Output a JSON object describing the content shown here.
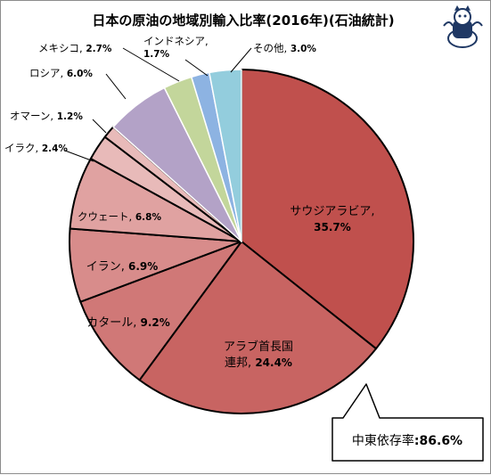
{
  "title": "日本の原油の地域別輸入比率(2016年)(石油統計)",
  "callout": {
    "label": "中東依存率",
    "value": "86.6%"
  },
  "colors": {
    "middle_east_1": "#c0504d",
    "middle_east_2": "#c86462",
    "middle_east_3": "#d07877",
    "middle_east_4": "#d88c8b",
    "middle_east_5": "#e0a2a1",
    "middle_east_6": "#e8bab9",
    "russia": "#b3a2c7",
    "mexico": "#c3d69b",
    "indonesia": "#8db3e2",
    "other": "#93cddd"
  },
  "chart_data": {
    "type": "pie",
    "title": "日本の原油の地域別輸入比率(2016年)(石油統計)",
    "start": "12 o'clock",
    "direction": "clockwise",
    "slices": [
      {
        "label": "サウジアラビア",
        "value": 35.7,
        "pct_text": "35.7%",
        "color": "#c0504d"
      },
      {
        "label": "アラブ首長国連邦",
        "value": 24.4,
        "pct_text": "24.4%",
        "color": "#c86462"
      },
      {
        "label": "カタール",
        "value": 9.2,
        "pct_text": "9.2%",
        "color": "#d07877"
      },
      {
        "label": "イラン",
        "value": 6.9,
        "pct_text": "6.9%",
        "color": "#d88c8b"
      },
      {
        "label": "クウェート",
        "value": 6.8,
        "pct_text": "6.8%",
        "color": "#e0a2a1"
      },
      {
        "label": "イラク",
        "value": 2.4,
        "pct_text": "2.4%",
        "color": "#e8bab9"
      },
      {
        "label": "オマーン",
        "value": 1.2,
        "pct_text": "1.2%",
        "color": "#e8bab9"
      },
      {
        "label": "ロシア",
        "value": 6.0,
        "pct_text": "6.0%",
        "color": "#b3a2c7"
      },
      {
        "label": "メキシコ",
        "value": 2.7,
        "pct_text": "2.7%",
        "color": "#c3d69b"
      },
      {
        "label": "インドネシア",
        "value": 1.7,
        "pct_text": "1.7%",
        "color": "#8db3e2"
      },
      {
        "label": "その他",
        "value": 3.0,
        "pct_text": "3.0%",
        "color": "#93cddd"
      }
    ]
  }
}
